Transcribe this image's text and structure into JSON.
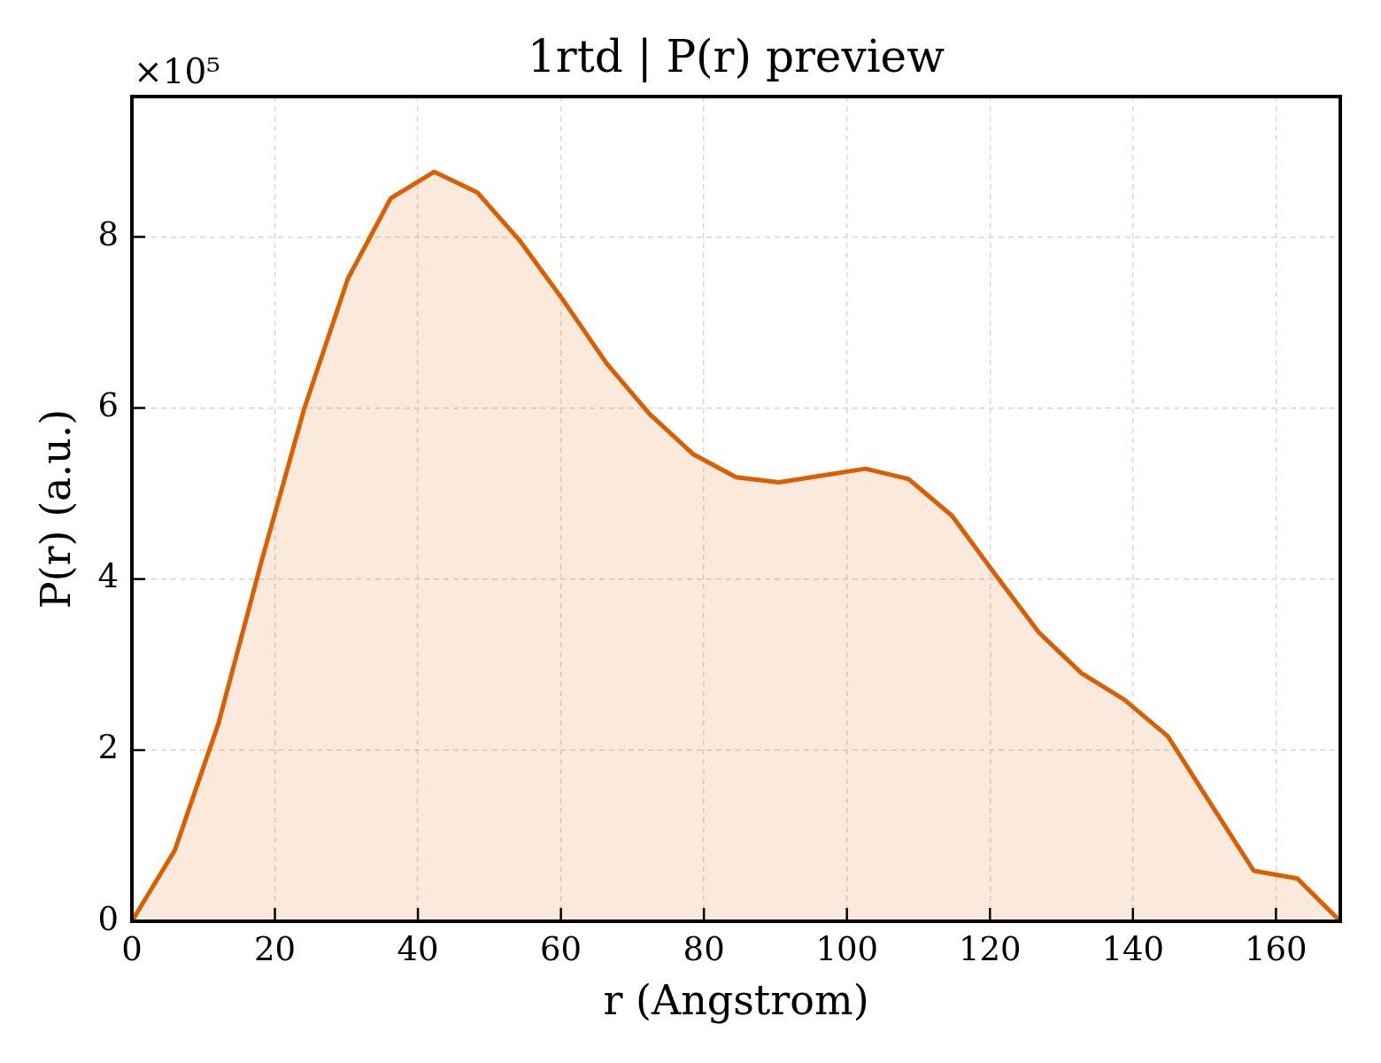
{
  "chart_data": {
    "type": "area",
    "title": "1rtd | P(r) preview",
    "xlabel": "r (Angstrom)",
    "ylabel": "P(r) (a.u.)",
    "annotations": [
      "×10⁵"
    ],
    "x": [
      0,
      6.0,
      12.1,
      18.1,
      24.1,
      30.2,
      36.2,
      42.3,
      48.3,
      54.3,
      60.4,
      66.4,
      72.4,
      78.5,
      84.5,
      90.5,
      96.6,
      102.6,
      108.6,
      114.7,
      120.7,
      126.8,
      132.8,
      138.8,
      144.9,
      150.9,
      156.9,
      163.0,
      169.0
    ],
    "values": [
      0,
      0.83,
      2.31,
      4.2,
      5.99,
      7.51,
      8.45,
      8.76,
      8.52,
      7.95,
      7.25,
      6.52,
      5.93,
      5.46,
      5.19,
      5.13,
      5.21,
      5.29,
      5.17,
      4.74,
      4.06,
      3.38,
      2.9,
      2.59,
      2.16,
      1.37,
      0.59,
      0.5,
      0
    ],
    "color": "#d95f02",
    "xlim": [
      0,
      169
    ],
    "xticks": [
      0,
      20,
      40,
      60,
      80,
      100,
      120,
      140,
      160
    ],
    "ylim": [
      0,
      9.64
    ],
    "yticks": [
      0,
      2,
      4,
      6,
      8
    ],
    "grid": true,
    "legend": false,
    "marker": "none",
    "line_style": "solid"
  }
}
